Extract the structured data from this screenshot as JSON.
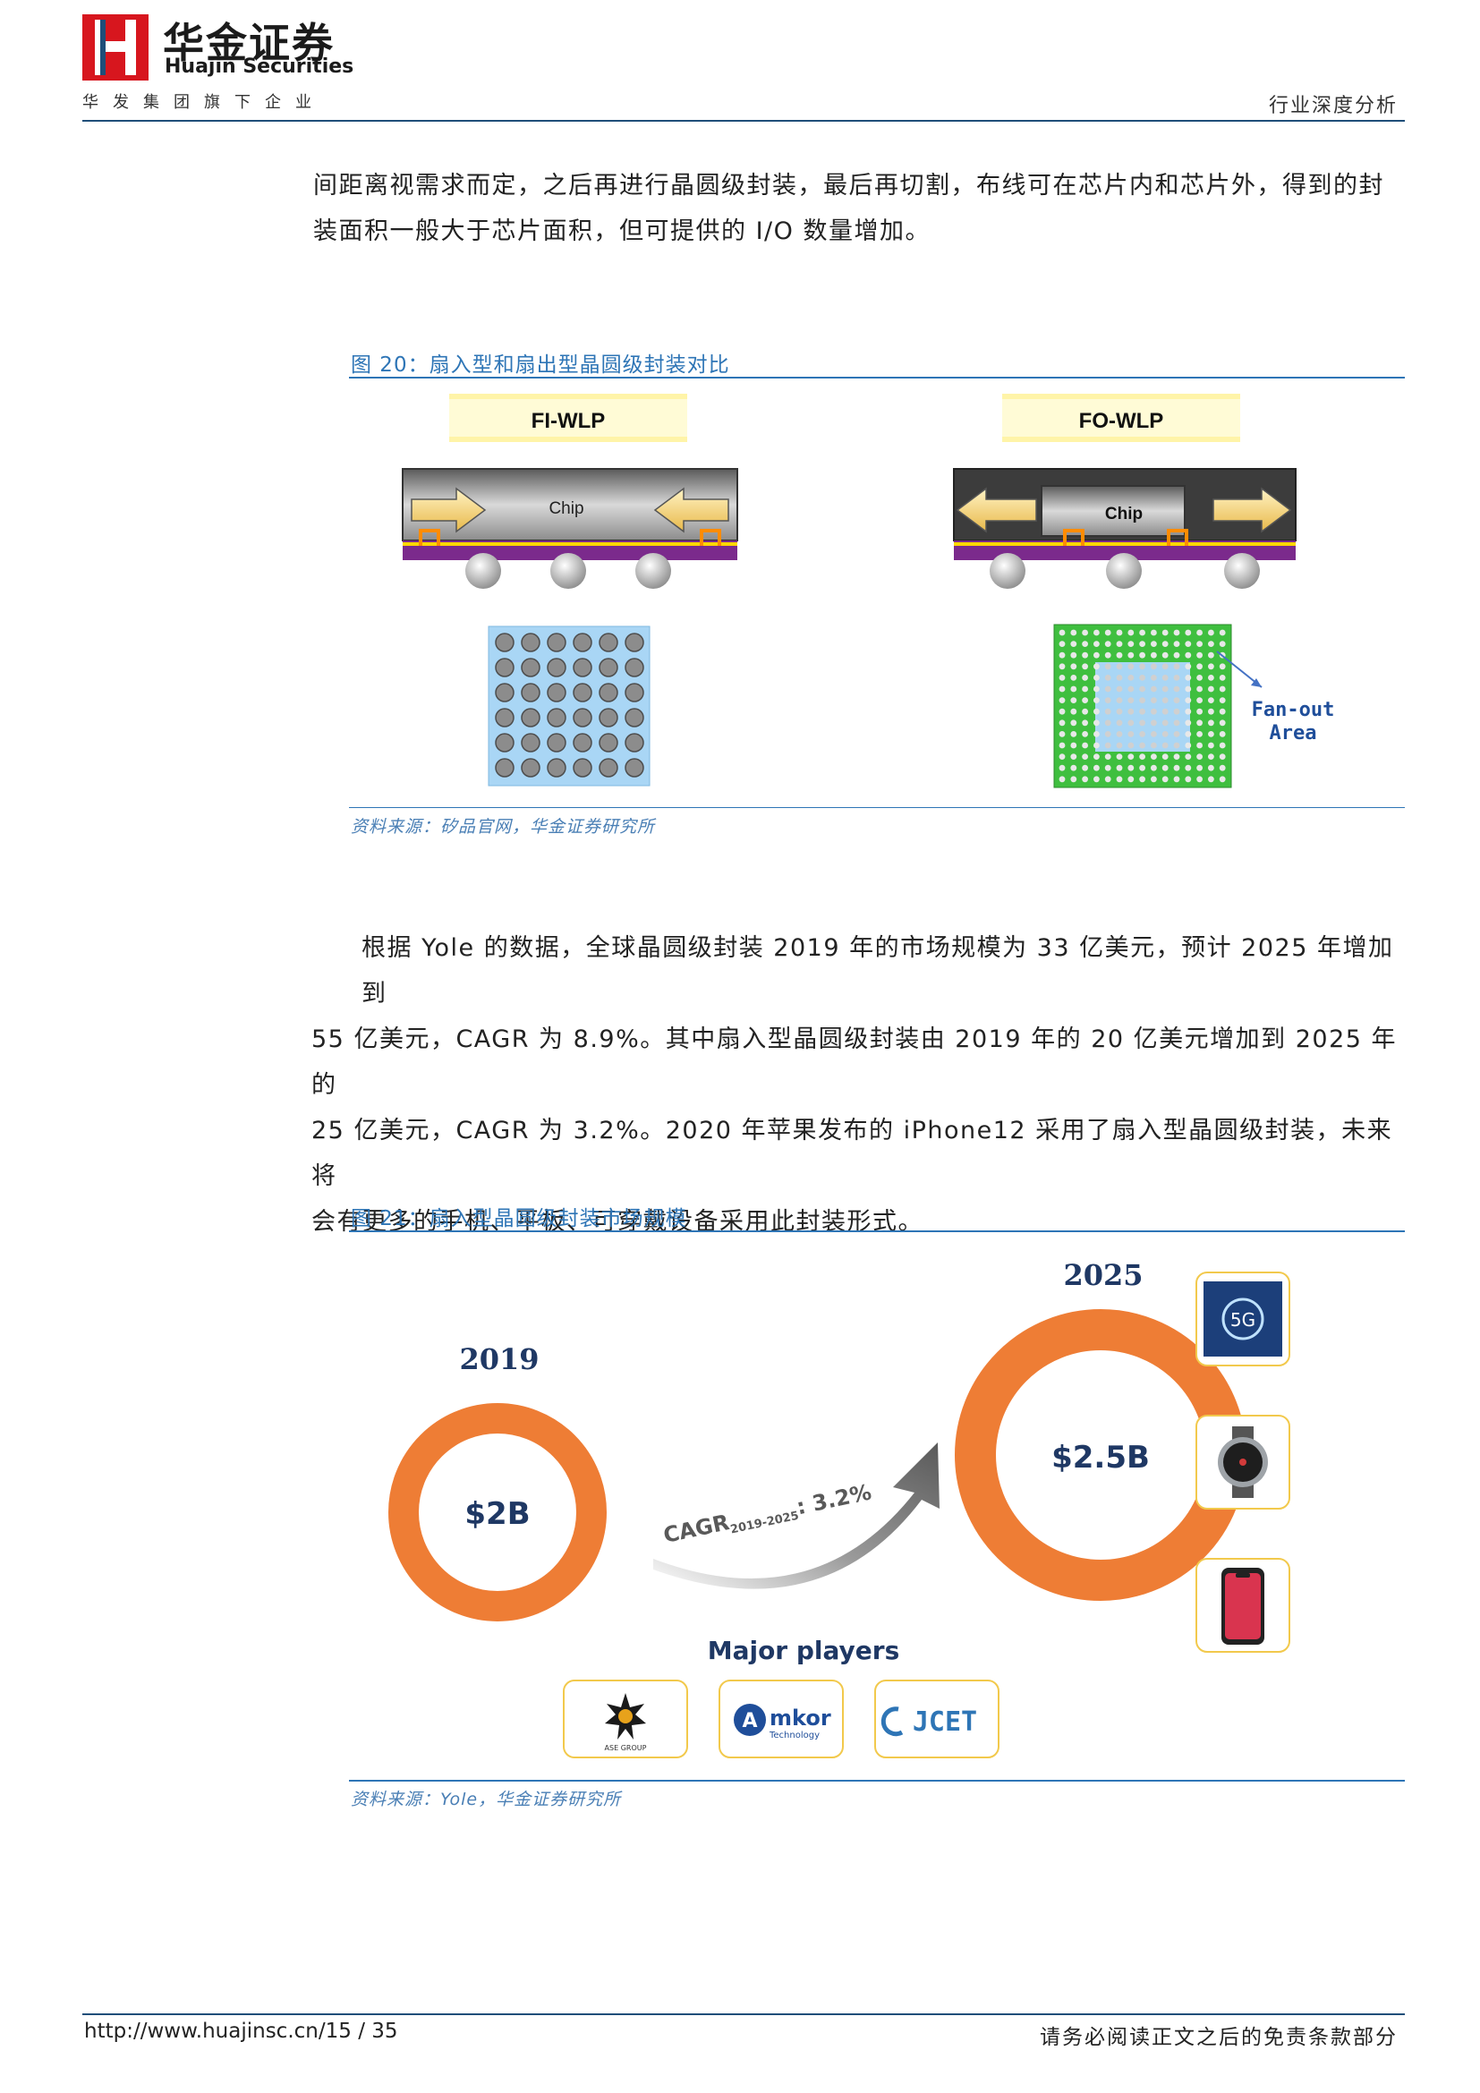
{
  "header": {
    "company_cn": "华金证券",
    "company_en": "Huajin Securities",
    "tagline": "华发集团旗下企业",
    "report_type": "行业深度分析"
  },
  "para1": {
    "line1": "间距离视需求而定，之后再进行晶圆级封装，最后再切割，布线可在芯片内和芯片外，得到的封",
    "line2": "装面积一般大于芯片面积，但可提供的 I/O 数量增加。"
  },
  "fig20": {
    "title": "图 20：扇入型和扇出型晶圆级封装对比",
    "left_label": "FI-WLP",
    "right_label": "FO-WLP",
    "chip_label": "Chip",
    "fanout_line1": "Fan-out",
    "fanout_line2": "Area",
    "source": "资料来源：矽品官网，华金证券研究所"
  },
  "para2": {
    "line1": "根据 Yole 的数据，全球晶圆级封装 2019 年的市场规模为 33 亿美元，预计 2025 年增加到",
    "line2": "55 亿美元，CAGR 为 8.9%。其中扇入型晶圆级封装由 2019 年的 20 亿美元增加到 2025 年的",
    "line3": "25 亿美元，CAGR 为 3.2%。2020 年苹果发布的 iPhone12 采用了扇入型晶圆级封装，未来将",
    "line4": "会有更多的手机、平板、可穿戴设备采用此封装形式。"
  },
  "fig21": {
    "title": "图 21：扇入型晶圆级封装市场规模",
    "year_2019": "2019",
    "year_2025": "2025",
    "value_2019": "$2B",
    "value_2025": "$2.5B",
    "cagr_prefix": "CAGR",
    "cagr_sub": "2019-2025",
    "cagr_value": ": 3.2%",
    "major_players": "Major players",
    "device_5g": "5G",
    "player_ase": "ASE GROUP",
    "player_amkor": "mkor",
    "player_amkor_sub": "Technology",
    "player_amkor_a": "A",
    "player_jcet": "JCET",
    "source": "资料来源：Yole，华金证券研究所",
    "colors": {
      "ring": "#ee7d35",
      "arrow": "#595959",
      "navy": "#1f3864",
      "card_border": "#f2c94c"
    }
  },
  "footer": {
    "url": "http://www.huajinsc.cn/",
    "page": "15",
    "sep": "/",
    "total": "35",
    "disclaimer": "请务必阅读正文之后的免责条款部分"
  }
}
